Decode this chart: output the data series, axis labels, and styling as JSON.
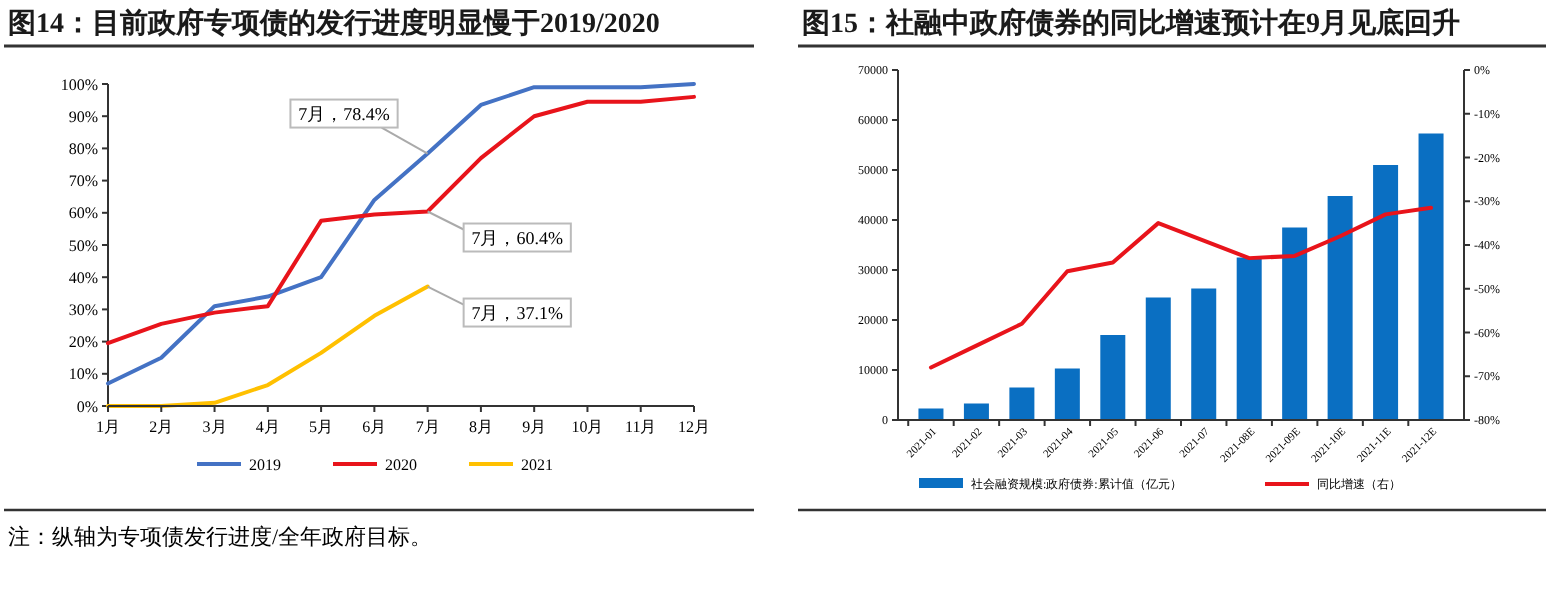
{
  "chart_data": [
    {
      "type": "line",
      "title": "图14：目前政府专项债的发行进度明显慢于2019/2020",
      "categories": [
        "1月",
        "2月",
        "3月",
        "4月",
        "5月",
        "6月",
        "7月",
        "8月",
        "9月",
        "10月",
        "11月",
        "12月"
      ],
      "series": [
        {
          "name": "2019",
          "color": "#4472c4",
          "values": [
            7,
            15,
            31,
            34,
            40,
            64,
            78.4,
            93.5,
            99,
            99,
            99,
            100
          ]
        },
        {
          "name": "2020",
          "color": "#e8141b",
          "values": [
            19.5,
            25.5,
            29,
            31,
            57.5,
            59.5,
            60.4,
            77,
            90,
            94.5,
            94.5,
            96
          ]
        },
        {
          "name": "2021",
          "color": "#ffc000",
          "values": [
            0,
            0,
            1,
            6.5,
            16.5,
            28,
            37.1,
            null,
            null,
            null,
            null,
            null
          ]
        }
      ],
      "ylim": [
        0,
        100
      ],
      "yticks": [
        {
          "value": 0,
          "label": "0%"
        },
        {
          "value": 10,
          "label": "10%"
        },
        {
          "value": 20,
          "label": "20%"
        },
        {
          "value": 30,
          "label": "30%"
        },
        {
          "value": 40,
          "label": "40%"
        },
        {
          "value": 50,
          "label": "50%"
        },
        {
          "value": 60,
          "label": "60%"
        },
        {
          "value": 70,
          "label": "70%"
        },
        {
          "value": 80,
          "label": "80%"
        },
        {
          "value": 90,
          "label": "90%"
        },
        {
          "value": 100,
          "label": "100%"
        }
      ],
      "legend": "bottom",
      "line_style": "solid",
      "annotations": [
        {
          "text": "7月，78.4%",
          "x": "7月",
          "y": 78.4
        },
        {
          "text": "7月，60.4%",
          "x": "7月",
          "y": 60.4
        },
        {
          "text": "7月，37.1%",
          "x": "7月",
          "y": 37.1
        },
        "注：纵轴为专项债发行进度/全年政府目标。"
      ]
    },
    {
      "type": "bar",
      "title": "图15：社融中政府债券的同比增速预计在9月见底回升",
      "categories": [
        "2021-01",
        "2021-02",
        "2021-03",
        "2021-04",
        "2021-05",
        "2021-06",
        "2021-07",
        "2021-08E",
        "2021-09E",
        "2021-10E",
        "2021-11E",
        "2021-12E"
      ],
      "series": [
        {
          "name": "社会融资规模:政府债券:累计值（亿元）",
          "color": "#0a6fc2",
          "values": [
            2300,
            3300,
            6500,
            10300,
            17000,
            24500,
            26300,
            32500,
            38500,
            44800,
            51000,
            57300
          ]
        },
        {
          "name": "同比增速（右）",
          "type": "line",
          "axis": "y2",
          "color": "#e8141b",
          "values": [
            -68,
            -63,
            -58,
            -46,
            -44,
            -35,
            -39,
            -43,
            -42.5,
            -38,
            -33,
            -31.5
          ]
        }
      ],
      "ylim": [
        0,
        70000
      ],
      "yticks": [
        0,
        10000,
        20000,
        30000,
        40000,
        50000,
        60000,
        70000
      ],
      "y2lim": [
        -80,
        0
      ],
      "y2ticks": [
        {
          "value": 0,
          "label": "0%"
        },
        {
          "value": -10,
          "label": "-10%"
        },
        {
          "value": -20,
          "label": "-20%"
        },
        {
          "value": -30,
          "label": "-30%"
        },
        {
          "value": -40,
          "label": "-40%"
        },
        {
          "value": -50,
          "label": "-50%"
        },
        {
          "value": -60,
          "label": "-60%"
        },
        {
          "value": -70,
          "label": "-70%"
        },
        {
          "value": -80,
          "label": "-80%"
        }
      ],
      "legend": "bottom",
      "line_style": "solid"
    }
  ]
}
